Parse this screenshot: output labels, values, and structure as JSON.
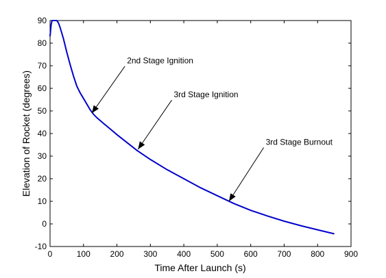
{
  "chart_data": {
    "type": "line",
    "title": "",
    "xlabel": "Time After Launch (s)",
    "ylabel": "Elevation of Rocket (degrees)",
    "xlim": [
      0,
      900
    ],
    "ylim": [
      -10,
      90
    ],
    "xticks": [
      0,
      100,
      200,
      300,
      400,
      500,
      600,
      700,
      800,
      900
    ],
    "yticks": [
      -10,
      0,
      10,
      20,
      30,
      40,
      50,
      60,
      70,
      80,
      90
    ],
    "grid": false,
    "line_color": "#0000cc",
    "series": [
      {
        "x": [
          0,
          3,
          6,
          10,
          15,
          20,
          25,
          30,
          40,
          50,
          60,
          70,
          80,
          90,
          100,
          110,
          120,
          130,
          140,
          160,
          180,
          200,
          230,
          260,
          300,
          350,
          400,
          450,
          500,
          550,
          600,
          650,
          700,
          750,
          800,
          850
        ],
        "y": [
          83,
          88,
          90,
          90,
          90,
          90,
          89,
          87,
          82,
          76,
          70.5,
          65.5,
          61,
          58,
          55.5,
          53,
          50.5,
          48.5,
          47,
          44.5,
          42,
          39.5,
          36,
          32.5,
          28.5,
          24,
          20,
          16,
          12.5,
          9,
          6,
          3.5,
          1.2,
          -0.8,
          -2.6,
          -4.4
        ]
      }
    ],
    "annotations": [
      {
        "text": "2nd Stage Ignition",
        "point": [
          125,
          49
        ],
        "label_at": [
          230,
          71
        ]
      },
      {
        "text": "3rd Stage Ignition",
        "point": [
          263,
          33
        ],
        "label_at": [
          370,
          56
        ]
      },
      {
        "text": "3rd Stage Burnout",
        "point": [
          535,
          10
        ],
        "label_at": [
          645,
          35
        ]
      }
    ]
  }
}
